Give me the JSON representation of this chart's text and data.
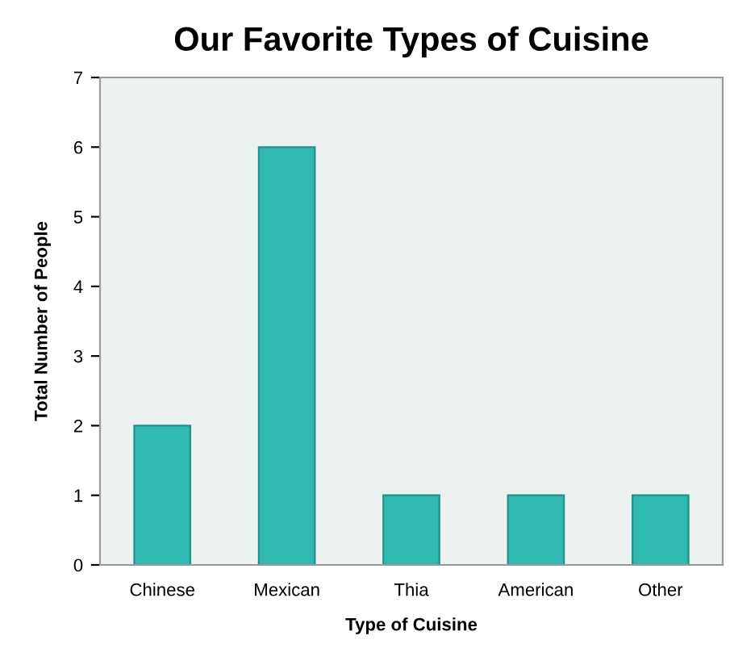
{
  "chart_data": {
    "type": "bar",
    "title": "Our Favorite Types of Cuisine",
    "xlabel": "Type of Cuisine",
    "ylabel": "Total Number of People",
    "categories": [
      "Chinese",
      "Mexican",
      "Thia",
      "American",
      "Other"
    ],
    "values": [
      2,
      6,
      1,
      1,
      1
    ],
    "color": "#30b9b1",
    "ylim": [
      0,
      7
    ],
    "yticks": [
      0,
      1,
      2,
      3,
      4,
      5,
      6,
      7
    ],
    "grid": false,
    "legend": false
  }
}
